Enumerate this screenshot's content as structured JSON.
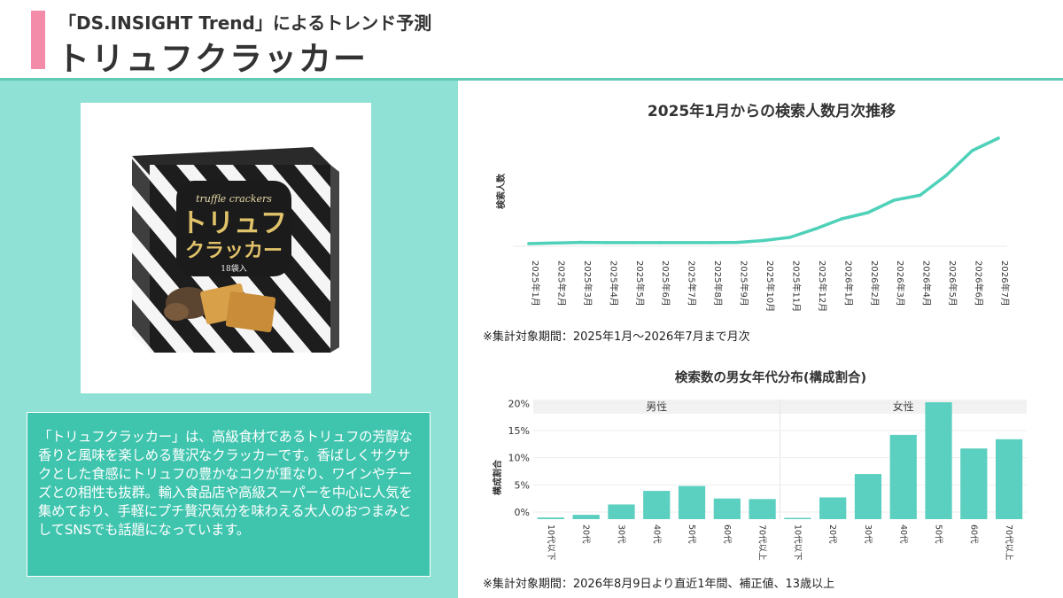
{
  "header": {
    "subtitle": "「DS.INSIGHT Trend」によるトレンド予測",
    "title": "トリュフクラッカー",
    "accent_color": "#f28ca8",
    "line_color": "#61c9b6"
  },
  "product": {
    "package_text": {
      "script": "truffle crackers",
      "name_line1": "トリュフ",
      "name_line2": "クラッカー",
      "count": "18袋入"
    }
  },
  "description": "「トリュフクラッカー」は、高級食材であるトリュフの芳醇な香りと風味を楽しめる贅沢なクラッカーです。香ばしくサクサクとした食感にトリュフの豊かなコクが重なり、ワインやチーズとの相性も抜群。輸入食品店や高級スーパーを中心に人気を集めており、手軽にプチ贅沢気分を味わえる大人のおつまみとしてSNSでも話題になっています。",
  "notes": {
    "line": "※集計対象期間：2025年1月～2026年7月まで月次",
    "bar": "※集計対象期間：2026年8月9日より直近1年間、補正値、13歳以上"
  },
  "chart_data": [
    {
      "type": "line",
      "title": "2025年1月からの検索人数月次推移",
      "ylabel": "検索人数",
      "xlabel": "",
      "categories": [
        "2025年1月",
        "2025年2月",
        "2025年3月",
        "2025年4月",
        "2025年5月",
        "2025年6月",
        "2025年7月",
        "2025年8月",
        "2025年9月",
        "2025年10月",
        "2025年11月",
        "2025年12月",
        "2026年1月",
        "2026年2月",
        "2026年3月",
        "2026年4月",
        "2026年5月",
        "2026年6月",
        "2026年7月"
      ],
      "values": [
        0,
        0.5,
        1,
        0.8,
        0.8,
        0.8,
        0.8,
        0.8,
        1,
        2.5,
        5,
        12,
        20,
        25,
        35,
        39,
        55,
        75,
        85
      ],
      "ylim": [
        0,
        90
      ],
      "grid": false,
      "color": "#4fd1b9"
    },
    {
      "type": "bar",
      "title": "検索数の男女年代分布(構成割合)",
      "ylabel": "構成割合",
      "facets": [
        "男性",
        "女性"
      ],
      "categories": [
        "10代以下",
        "20代",
        "30代",
        "40代",
        "50代",
        "60代",
        "70代以上"
      ],
      "series": [
        {
          "name": "男性",
          "values": [
            0.3,
            0.8,
            2.7,
            5.2,
            6.1,
            3.8,
            3.7
          ]
        },
        {
          "name": "女性",
          "values": [
            0.2,
            4.0,
            8.3,
            15.5,
            21.5,
            13.0,
            14.7
          ]
        }
      ],
      "yticks": [
        "0%",
        "5%",
        "10%",
        "15%",
        "20%"
      ],
      "ylim": [
        0,
        22
      ],
      "grid": true,
      "color": "#5bcfc0"
    }
  ]
}
